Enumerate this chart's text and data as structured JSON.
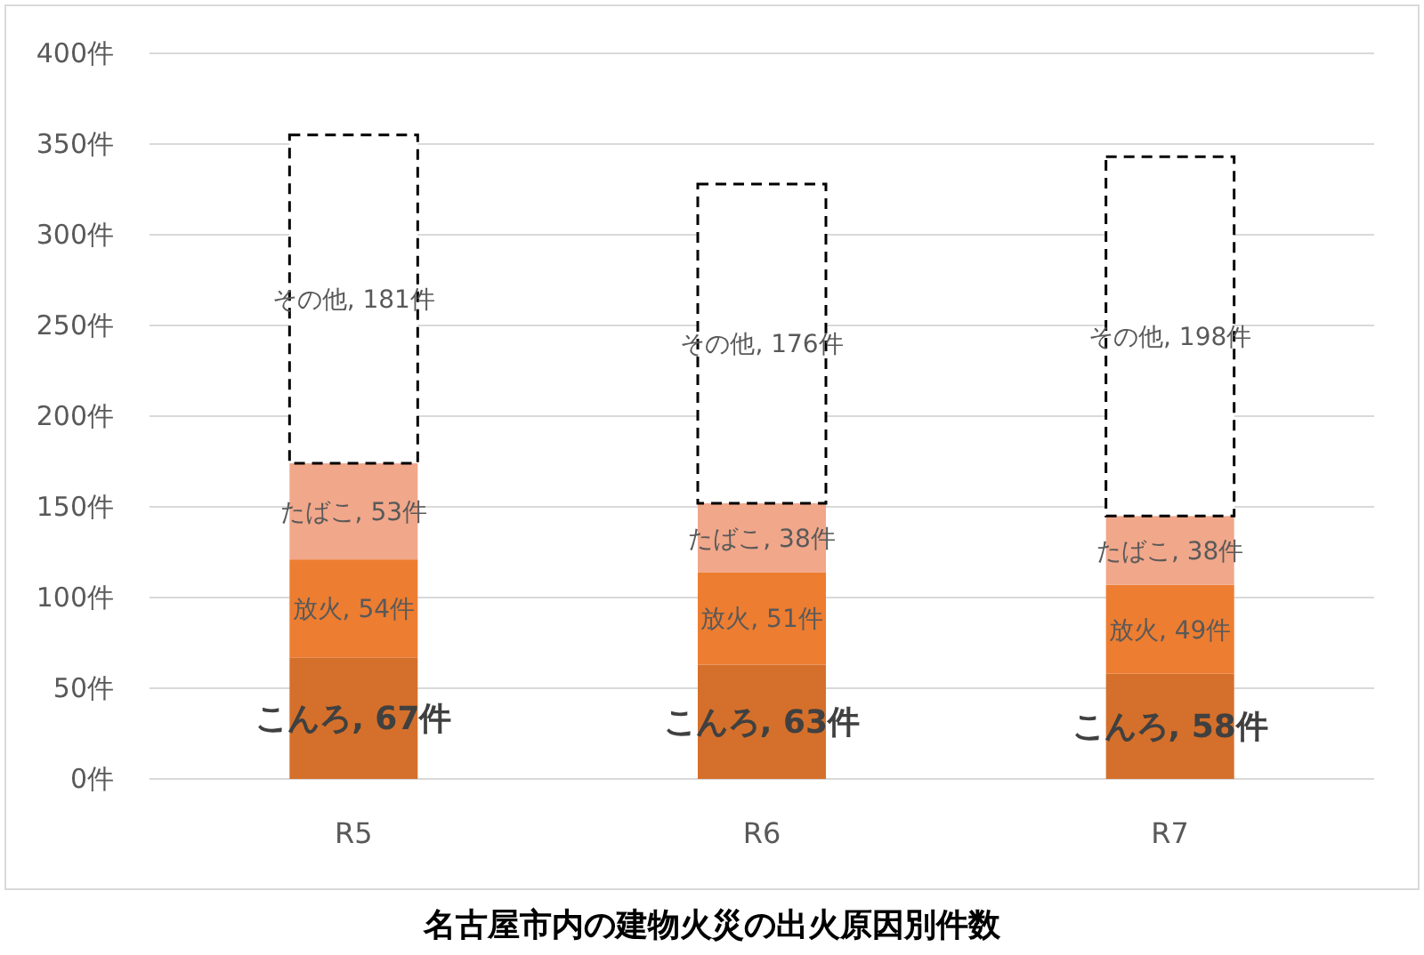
{
  "chart_data": {
    "type": "bar",
    "stacked": true,
    "title": "名古屋市内の建物火災の出火原因別件数",
    "categories": [
      "R5",
      "R6",
      "R7"
    ],
    "series": [
      {
        "color": "#d4702b",
        "values": [
          67,
          63,
          58
        ],
        "value_labels": [
          "こんろ, 67件",
          "こんろ, 63件",
          "こんろ, 58件"
        ]
      },
      {
        "color": "#ed7d31",
        "values": [
          54,
          51,
          49
        ],
        "value_labels": [
          "放火, 54件",
          "放火, 51件",
          "放火, 49件"
        ]
      },
      {
        "color": "#f1a78a",
        "values": [
          53,
          38,
          38
        ],
        "value_labels": [
          "たばこ, 53件",
          "たばこ, 38件",
          "たばこ, 38件"
        ]
      },
      {
        "color": "#ffffff",
        "line_style": "dashed",
        "values": [
          181,
          176,
          198
        ],
        "value_labels": [
          "その他, 181件",
          "その他, 176件",
          "その他, 198件"
        ]
      }
    ],
    "ylim": [
      0,
      400
    ],
    "yticks": [
      {
        "value": 0,
        "label": "0件"
      },
      {
        "value": 50,
        "label": "50件"
      },
      {
        "value": 100,
        "label": "100件"
      },
      {
        "value": 150,
        "label": "150件"
      },
      {
        "value": 200,
        "label": "200件"
      },
      {
        "value": 250,
        "label": "250件"
      },
      {
        "value": 300,
        "label": "300件"
      },
      {
        "value": 350,
        "label": "350件"
      },
      {
        "value": 400,
        "label": "400件"
      }
    ],
    "grid": "y"
  }
}
